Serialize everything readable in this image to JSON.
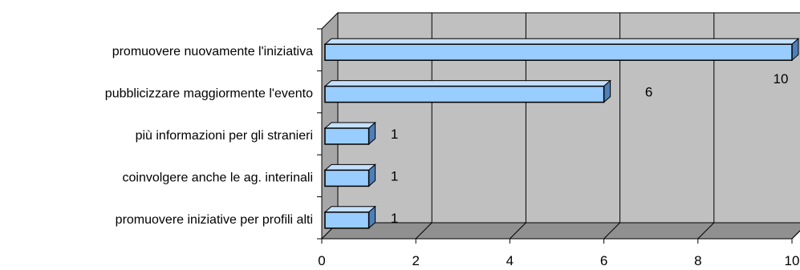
{
  "chart_data": {
    "type": "bar",
    "orientation": "horizontal",
    "style": "3d",
    "categories": [
      "promuovere nuovamente l'iniziativa",
      "pubblicizzare maggiormente l'evento",
      "più informazioni per gli stranieri",
      "coinvolgere anche le ag. interinali",
      "promuovere iniziative per profili alti"
    ],
    "values": [
      10,
      6,
      1,
      1,
      1
    ],
    "data_labels": [
      "10",
      "6",
      "1",
      "1",
      "1"
    ],
    "xticks": [
      "0",
      "2",
      "4",
      "6",
      "8",
      "10"
    ],
    "xlim": [
      0,
      10
    ],
    "grid": true,
    "legend": "none",
    "colors": {
      "bar_front": "#99ccff",
      "bar_top": "#c4e0ff",
      "bar_side": "#4f7fb8",
      "plot_back": "#c0c0c0",
      "plot_floor": "#909090",
      "plot_wall": "#a6a6a6",
      "gridline": "#000000"
    }
  }
}
